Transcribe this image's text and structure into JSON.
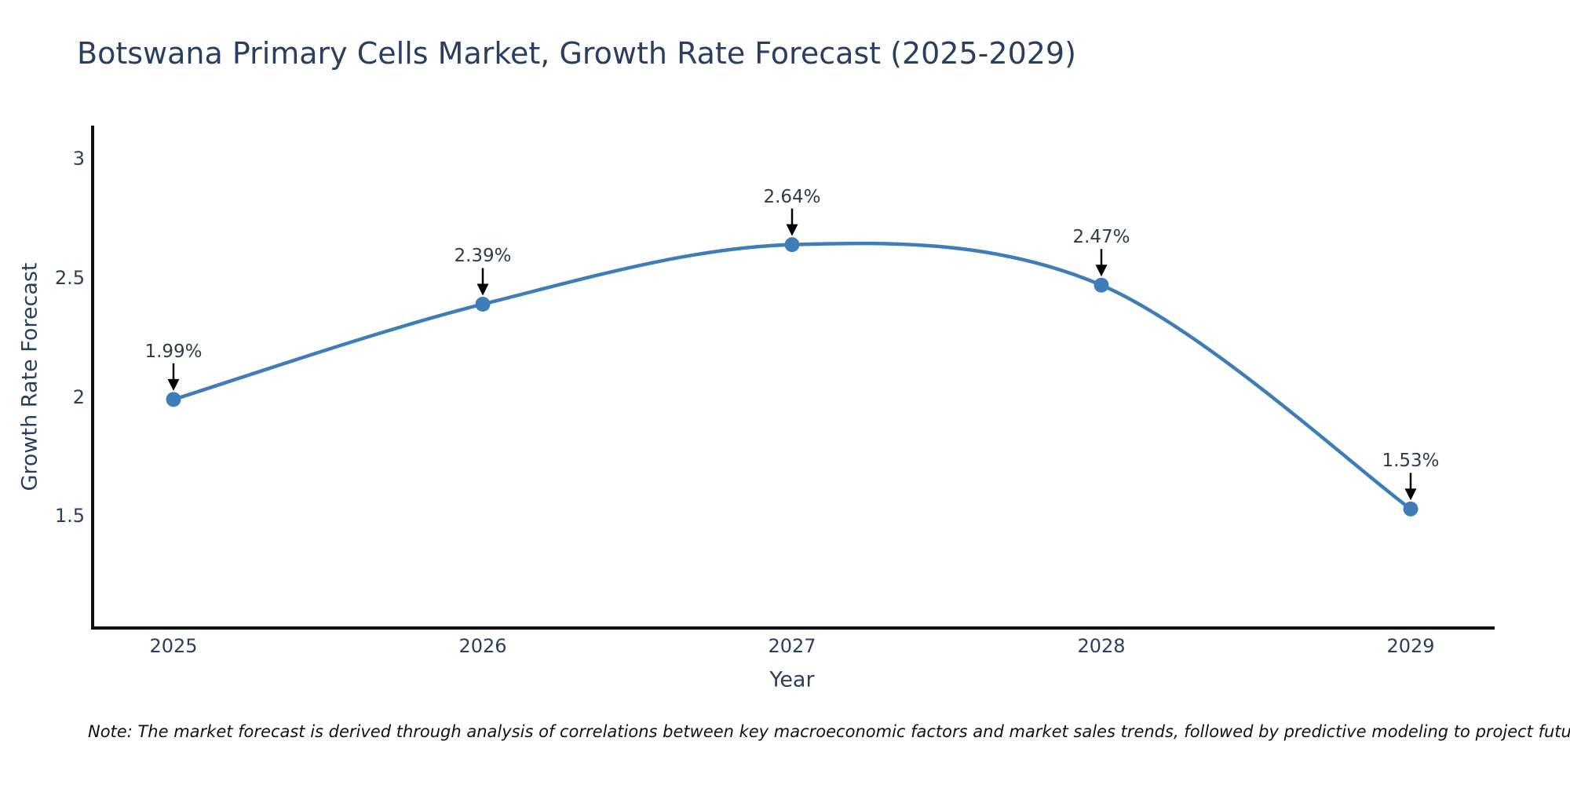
{
  "title": "Botswana Primary Cells Market, Growth Rate Forecast (2025-2029)",
  "footnote": "Note: The market forecast is derived through analysis of correlations between key macroeconomic factors and market sales trends, followed by predictive modeling to project future sales",
  "chart_data": {
    "type": "line",
    "x": [
      "2025",
      "2026",
      "2027",
      "2028",
      "2029"
    ],
    "series": [
      {
        "name": "Growth Rate Forecast",
        "values": [
          1.99,
          2.39,
          2.64,
          2.47,
          1.53
        ]
      }
    ],
    "point_labels": [
      "1.99%",
      "2.39%",
      "2.64%",
      "2.47%",
      "1.53%"
    ],
    "title": "Botswana Primary Cells Market, Growth Rate Forecast (2025-2029)",
    "xlabel": "Year",
    "ylabel": "Growth Rate Forecast",
    "ylim": [
      1.03,
      3.14
    ],
    "yticks": [
      3,
      2.5,
      2,
      1.5
    ],
    "line_shape": "spline",
    "grid": false,
    "legend_position": "none",
    "line_color": "#3f7db8",
    "marker_color": "#3f7db8",
    "arrow_color": "#000000",
    "text_color": "#2a3f5f",
    "axis_color": "#111111"
  }
}
